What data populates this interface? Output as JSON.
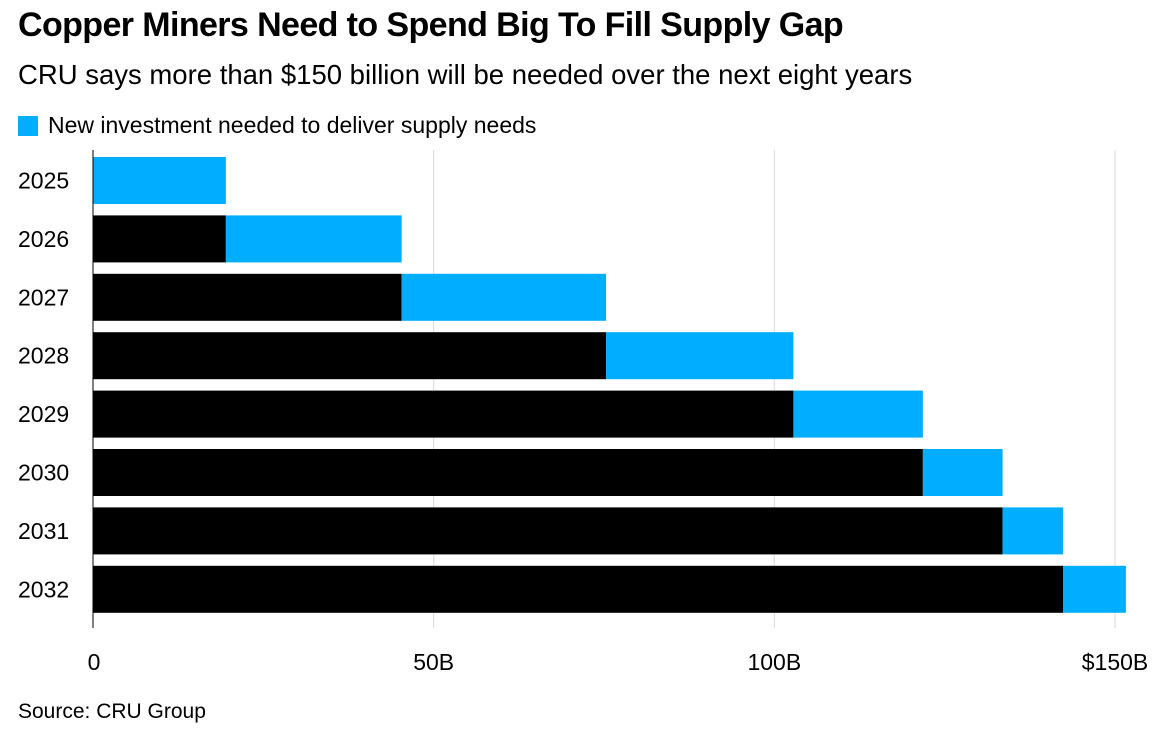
{
  "title": "Copper Miners Need to Spend Big To Fill Supply Gap",
  "subtitle": "CRU says more than $150 billion will be needed over the next eight years",
  "source": "Source: CRU Group",
  "colors": {
    "new_investment": "#00adff",
    "cumulative": "#000000",
    "background": "#ffffff"
  },
  "chart_data": {
    "type": "bar",
    "orientation": "horizontal",
    "stacked": true,
    "title": "Copper Miners Need to Spend Big To Fill Supply Gap",
    "categories": [
      "2025",
      "2026",
      "2027",
      "2028",
      "2029",
      "2030",
      "2031",
      "2032"
    ],
    "series": [
      {
        "name": "",
        "color": "#000000",
        "values": [
          0,
          19.5,
          45.3,
          75.3,
          102.8,
          121.8,
          133.5,
          142.4
        ]
      },
      {
        "name": "New investment needed to deliver supply needs",
        "color": "#00adff",
        "values": [
          19.5,
          25.8,
          30.0,
          27.5,
          19.0,
          11.7,
          8.9,
          9.2
        ]
      }
    ],
    "x_ticks": [
      "0",
      "50B",
      "100B",
      "$150B"
    ],
    "x_tick_values": [
      0,
      50,
      100,
      150
    ],
    "xlim": [
      0,
      150
    ],
    "xlabel": "",
    "ylabel": "",
    "unit": "billion USD",
    "legend": [
      "New investment needed to deliver supply needs"
    ],
    "legend_position": "top-left",
    "grid": true
  }
}
